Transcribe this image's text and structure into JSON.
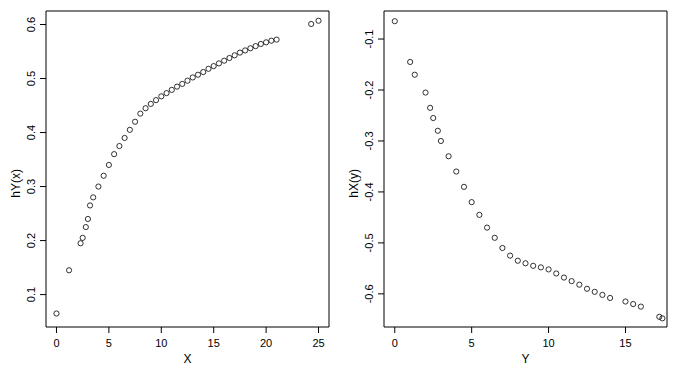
{
  "chart_data": [
    {
      "type": "scatter",
      "x_label": "X",
      "y_label": "hY(x)",
      "color": "#000000",
      "marker": "open_circle",
      "xlim": [
        -1,
        26
      ],
      "xticks": [
        0,
        5,
        10,
        15,
        20,
        25
      ],
      "ylim": [
        0.04,
        0.625
      ],
      "yticks": [
        0.1,
        0.2,
        0.3,
        0.4,
        0.5,
        0.6
      ],
      "x": [
        0,
        1.2,
        2.3,
        2.5,
        2.8,
        3,
        3.2,
        3.5,
        4,
        4.5,
        5,
        5.5,
        6,
        6.5,
        7,
        7.5,
        8,
        8.5,
        9,
        9.5,
        10,
        10.5,
        11,
        11.5,
        12,
        12.5,
        13,
        13.5,
        14,
        14.5,
        15,
        15.5,
        16,
        16.5,
        17,
        17.5,
        18,
        18.5,
        19,
        19.5,
        20,
        20.5,
        21,
        24.3,
        25
      ],
      "values": [
        0.065,
        0.145,
        0.195,
        0.205,
        0.225,
        0.24,
        0.265,
        0.28,
        0.3,
        0.32,
        0.34,
        0.36,
        0.375,
        0.39,
        0.405,
        0.42,
        0.435,
        0.445,
        0.453,
        0.46,
        0.467,
        0.473,
        0.479,
        0.485,
        0.49,
        0.496,
        0.502,
        0.507,
        0.512,
        0.518,
        0.523,
        0.528,
        0.533,
        0.538,
        0.543,
        0.548,
        0.552,
        0.556,
        0.56,
        0.564,
        0.567,
        0.57,
        0.572,
        0.601,
        0.607
      ]
    },
    {
      "type": "scatter",
      "x_label": "Y",
      "y_label": "hX(y)",
      "color": "#000000",
      "marker": "open_circle",
      "xlim": [
        -0.7,
        17.7
      ],
      "xticks": [
        0,
        5,
        10,
        15
      ],
      "ylim": [
        -0.665,
        -0.045
      ],
      "yticks": [
        -0.6,
        -0.5,
        -0.4,
        -0.3,
        -0.2,
        -0.1
      ],
      "x": [
        0,
        1,
        1.3,
        2,
        2.3,
        2.5,
        2.8,
        3,
        3.5,
        4,
        4.5,
        5,
        5.5,
        6,
        6.5,
        7,
        7.5,
        8,
        8.5,
        9,
        9.5,
        10,
        10.5,
        11,
        11.5,
        12,
        12.5,
        13,
        13.5,
        14,
        15,
        15.5,
        16,
        17.2,
        17.4
      ],
      "values": [
        -0.065,
        -0.145,
        -0.17,
        -0.205,
        -0.235,
        -0.255,
        -0.28,
        -0.3,
        -0.33,
        -0.36,
        -0.39,
        -0.42,
        -0.445,
        -0.47,
        -0.49,
        -0.51,
        -0.525,
        -0.535,
        -0.54,
        -0.545,
        -0.548,
        -0.552,
        -0.56,
        -0.568,
        -0.575,
        -0.582,
        -0.59,
        -0.596,
        -0.602,
        -0.608,
        -0.615,
        -0.62,
        -0.625,
        -0.645,
        -0.648
      ]
    }
  ]
}
